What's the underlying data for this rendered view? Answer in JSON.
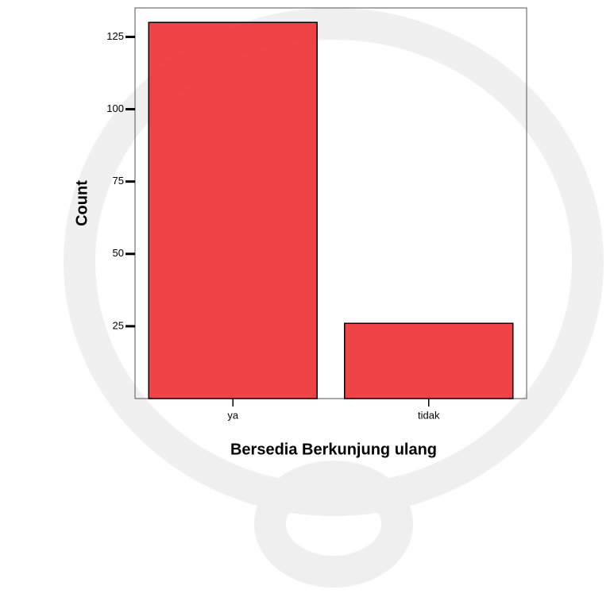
{
  "chart_data": {
    "type": "bar",
    "categories": [
      "ya",
      "tidak"
    ],
    "values": [
      130,
      26
    ],
    "color": "#ee3338",
    "ylim": [
      0,
      135
    ],
    "yticks": [
      25,
      50,
      75,
      100,
      125
    ],
    "ylabel": "Count",
    "xlabel": "Bersedia Berkunjung ulang"
  }
}
